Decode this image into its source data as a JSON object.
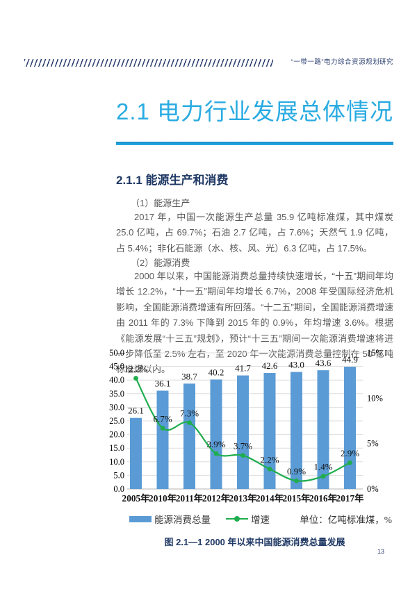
{
  "header": {
    "book_title": "“一带一路”电力综合资源规划研究"
  },
  "section": {
    "title": "2.1 电力行业发展总体情况"
  },
  "subsection": {
    "title": "2.1.1 能源生产和消费"
  },
  "content": {
    "item1_label": "（1）能源生产",
    "para1": "2017 年，中国一次能源生产总量 35.9 亿吨标准煤，其中煤炭 25.0 亿吨，占 69.7%；石油 2.7 亿吨，占 7.6%；天然气 1.9 亿吨，占 5.4%；非化石能源（水、核、风、光）6.3 亿吨，占 17.5%。",
    "item2_label": "（2）能源消费",
    "para2": "2000 年以来，中国能源消费总量持续快速增长，“十五”期间年均增长 12.2%，“十一五”期间年均增长 6.7%，2008 年受国际经济危机影响，全国能源消费增速有所回落。“十二五”期间，全国能源消费增速由 2011 年的 7.3% 下降到 2015 年的 0.9%，年均增速 3.6%。根据《能源发展“十三五”规划》，预计“十三五”期间一次能源消费增速将进一步降低至 2.5% 左右，至 2020 年一次能源消费总量控制在 50 亿吨标准煤以内。"
  },
  "chart_data": {
    "type": "bar",
    "subtype": "bar+line combo, dual axis",
    "categories": [
      "2005年",
      "2010年",
      "2011年",
      "2012年",
      "2013年",
      "2014年",
      "2015年",
      "2016年",
      "2017年"
    ],
    "series": [
      {
        "name": "能源消费总量",
        "type": "bar",
        "axis": "left",
        "color": "#5b9bd5",
        "values": [
          26.1,
          36.1,
          38.7,
          40.2,
          41.7,
          42.6,
          43.0,
          43.6,
          44.9
        ],
        "labels": [
          "26.1",
          "36.1",
          "38.7",
          "40.2",
          "41.7",
          "42.6",
          "43.0",
          "43.6",
          "44.9"
        ]
      },
      {
        "name": "增速",
        "type": "line",
        "axis": "right",
        "color": "#1fad4e",
        "values": [
          12.2,
          6.7,
          7.3,
          3.9,
          3.7,
          2.2,
          0.9,
          1.4,
          2.9
        ],
        "labels": [
          "12.2%",
          "6.7%",
          "7.3%",
          "3.9%",
          "3.7%",
          "2.2%",
          "0.9%",
          "1.4%",
          "2.9%"
        ]
      }
    ],
    "left_axis": {
      "min": 0,
      "max": 50,
      "step": 5,
      "tick_labels": [
        "0.0",
        "5.0",
        "10.0",
        "15.0",
        "20.0",
        "25.0",
        "30.0",
        "35.0",
        "40.0",
        "45.0",
        "50.0"
      ]
    },
    "right_axis": {
      "min": 0,
      "max": 15,
      "step": 5,
      "tick_labels": [
        "0%",
        "5%",
        "10%",
        "15%"
      ]
    },
    "grid": "horizontal light-gray lines at each left-axis tick",
    "legend_position": "bottom",
    "unit_label": "单位：亿吨标准煤，%"
  },
  "figure": {
    "caption": "图 2.1—1 2000 年以来中国能源消费总量发展"
  },
  "page_number": "13",
  "colors": {
    "accent_cyan": "#29abe2",
    "heading_navy": "#1f3864",
    "body_text": "#595959",
    "bar_blue": "#5b9bd5",
    "line_green": "#1fad4e"
  }
}
